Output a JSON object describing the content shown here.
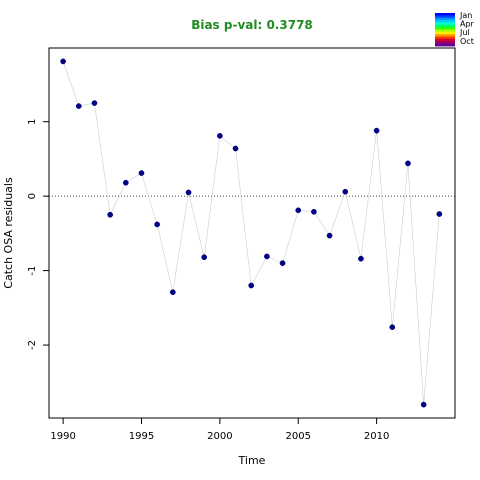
{
  "chart_data": {
    "type": "scatter",
    "title": "Bias p-val: 0.3778",
    "title_color": "#228B22",
    "xlabel": "Time",
    "ylabel": "Catch OSA residuals",
    "xlim": [
      1989.1,
      2015.0
    ],
    "ylim": [
      -2.98,
      1.99
    ],
    "x_ticks": [
      1990,
      1995,
      2000,
      2005,
      2010
    ],
    "y_ticks": [
      -2,
      -1,
      0,
      1
    ],
    "reference_line": {
      "y": 0,
      "style": "dotted"
    },
    "point_color": "#00008B",
    "line_color": "#cccccc",
    "legend": {
      "placement": "top-right",
      "labels": [
        "Jan",
        "Apr",
        "Jul",
        "Oct"
      ],
      "colors": [
        "#0000ff",
        "#0044ff",
        "#0099ff",
        "#00ccff",
        "#00ffcc",
        "#00ff66",
        "#33ff00",
        "#aaff00",
        "#ffee00",
        "#ff9900",
        "#ff3300",
        "#cc0033",
        "#990066",
        "#660099"
      ]
    },
    "x": [
      1990,
      1991,
      1992,
      1993,
      1994,
      1995,
      1996,
      1997,
      1998,
      1999,
      2000,
      2001,
      2002,
      2003,
      2004,
      2005,
      2006,
      2007,
      2008,
      2009,
      2010,
      2011,
      2012,
      2013,
      2014
    ],
    "y": [
      1.81,
      1.21,
      1.25,
      -0.25,
      0.18,
      0.31,
      -0.38,
      -1.29,
      0.05,
      -0.82,
      0.81,
      0.64,
      -1.2,
      -0.81,
      -0.9,
      -0.19,
      -0.21,
      -0.53,
      0.06,
      -0.84,
      0.88,
      -1.76,
      0.44,
      -2.8,
      -0.24
    ]
  }
}
